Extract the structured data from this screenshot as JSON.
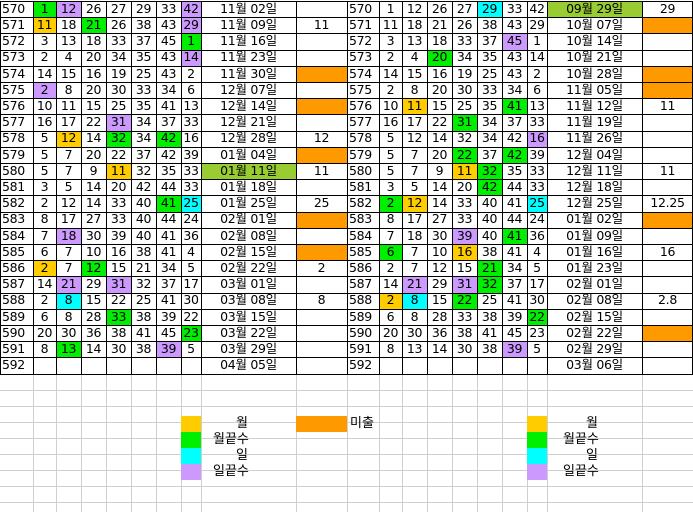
{
  "colors": {
    "yellow": "#ffcc00",
    "green": "#00ee00",
    "cyan": "#00ffff",
    "purple": "#cc99ff",
    "orange": "#ff9900",
    "olive": "#99cc33",
    "grid": "#000000",
    "light_grid": "#cfcfcf"
  },
  "left_table": {
    "rows": [
      {
        "num": "570",
        "n": [
          "1",
          "12",
          "26",
          "27",
          "29",
          "33",
          "42"
        ],
        "c": [
          "g",
          "p",
          "",
          "",
          "",
          "",
          "p"
        ],
        "date": "11월 02일",
        "dc": "",
        "r": "",
        "rc": ""
      },
      {
        "num": "571",
        "n": [
          "11",
          "18",
          "21",
          "26",
          "38",
          "43",
          "29"
        ],
        "c": [
          "y",
          "",
          "g",
          "",
          "",
          "",
          "p"
        ],
        "date": "11월 09일",
        "dc": "",
        "r": "11",
        "rc": ""
      },
      {
        "num": "572",
        "n": [
          "3",
          "13",
          "18",
          "33",
          "37",
          "45",
          "1"
        ],
        "c": [
          "",
          "",
          "",
          "",
          "",
          "",
          "g"
        ],
        "date": "11월 16일",
        "dc": "",
        "r": "",
        "rc": ""
      },
      {
        "num": "573",
        "n": [
          "2",
          "4",
          "20",
          "34",
          "35",
          "43",
          "14"
        ],
        "c": [
          "",
          "",
          "",
          "",
          "",
          "",
          "p"
        ],
        "date": "11월 23일",
        "dc": "",
        "r": "",
        "rc": ""
      },
      {
        "num": "574",
        "n": [
          "14",
          "15",
          "16",
          "19",
          "25",
          "43",
          "2"
        ],
        "c": [
          "",
          "",
          "",
          "",
          "",
          "",
          ""
        ],
        "date": "11월 30일",
        "dc": "",
        "r": "",
        "rc": "o"
      },
      {
        "num": "575",
        "n": [
          "2",
          "8",
          "20",
          "30",
          "33",
          "34",
          "6"
        ],
        "c": [
          "p",
          "",
          "",
          "",
          "",
          "",
          ""
        ],
        "date": "12월 07일",
        "dc": "",
        "r": "",
        "rc": ""
      },
      {
        "num": "576",
        "n": [
          "10",
          "11",
          "15",
          "25",
          "35",
          "41",
          "13"
        ],
        "c": [
          "",
          "",
          "",
          "",
          "",
          "",
          ""
        ],
        "date": "12월 14일",
        "dc": "",
        "r": "",
        "rc": "o"
      },
      {
        "num": "577",
        "n": [
          "16",
          "17",
          "22",
          "31",
          "34",
          "37",
          "33"
        ],
        "c": [
          "",
          "",
          "",
          "p",
          "",
          "",
          ""
        ],
        "date": "12월 21일",
        "dc": "",
        "r": "",
        "rc": ""
      },
      {
        "num": "578",
        "n": [
          "5",
          "12",
          "14",
          "32",
          "34",
          "42",
          "16"
        ],
        "c": [
          "",
          "y",
          "",
          "g",
          "",
          "g",
          ""
        ],
        "date": "12월 28일",
        "dc": "",
        "r": "12",
        "rc": ""
      },
      {
        "num": "579",
        "n": [
          "5",
          "7",
          "20",
          "22",
          "37",
          "42",
          "39"
        ],
        "c": [
          "",
          "",
          "",
          "",
          "",
          "",
          ""
        ],
        "date": "01월 04일",
        "dc": "",
        "r": "",
        "rc": "o"
      },
      {
        "num": "580",
        "n": [
          "5",
          "7",
          "9",
          "11",
          "32",
          "35",
          "33"
        ],
        "c": [
          "",
          "",
          "",
          "y",
          "",
          "",
          ""
        ],
        "date": "01월 11일",
        "dc": "ol",
        "r": "11",
        "rc": ""
      },
      {
        "num": "581",
        "n": [
          "3",
          "5",
          "14",
          "20",
          "42",
          "44",
          "33"
        ],
        "c": [
          "",
          "",
          "",
          "",
          "",
          "",
          ""
        ],
        "date": "01월 18일",
        "dc": "",
        "r": "",
        "rc": ""
      },
      {
        "num": "582",
        "n": [
          "2",
          "12",
          "14",
          "33",
          "40",
          "41",
          "25"
        ],
        "c": [
          "",
          "",
          "",
          "",
          "",
          "g",
          "c"
        ],
        "date": "01월 25일",
        "dc": "",
        "r": "25",
        "rc": ""
      },
      {
        "num": "583",
        "n": [
          "8",
          "17",
          "27",
          "33",
          "40",
          "44",
          "24"
        ],
        "c": [
          "",
          "",
          "",
          "",
          "",
          "",
          ""
        ],
        "date": "02월 01일",
        "dc": "",
        "r": "",
        "rc": "o"
      },
      {
        "num": "584",
        "n": [
          "7",
          "18",
          "30",
          "39",
          "40",
          "41",
          "36"
        ],
        "c": [
          "",
          "p",
          "",
          "",
          "",
          "",
          ""
        ],
        "date": "02월 08일",
        "dc": "",
        "r": "",
        "rc": ""
      },
      {
        "num": "585",
        "n": [
          "6",
          "7",
          "10",
          "16",
          "38",
          "41",
          "4"
        ],
        "c": [
          "",
          "",
          "",
          "",
          "",
          "",
          ""
        ],
        "date": "02월 15일",
        "dc": "",
        "r": "",
        "rc": "o"
      },
      {
        "num": "586",
        "n": [
          "2",
          "7",
          "12",
          "15",
          "21",
          "34",
          "5"
        ],
        "c": [
          "y",
          "",
          "g",
          "",
          "",
          "",
          ""
        ],
        "date": "02월 22일",
        "dc": "",
        "r": "2",
        "rc": ""
      },
      {
        "num": "587",
        "n": [
          "14",
          "21",
          "29",
          "31",
          "32",
          "37",
          "17"
        ],
        "c": [
          "",
          "p",
          "",
          "p",
          "",
          "",
          ""
        ],
        "date": "03월 01일",
        "dc": "",
        "r": "",
        "rc": ""
      },
      {
        "num": "588",
        "n": [
          "2",
          "8",
          "15",
          "22",
          "25",
          "41",
          "30"
        ],
        "c": [
          "",
          "c",
          "",
          "",
          "",
          "",
          ""
        ],
        "date": "03월 08일",
        "dc": "",
        "r": "8",
        "rc": ""
      },
      {
        "num": "589",
        "n": [
          "6",
          "8",
          "28",
          "33",
          "38",
          "39",
          "22"
        ],
        "c": [
          "",
          "",
          "",
          "g",
          "",
          "",
          ""
        ],
        "date": "03월 15일",
        "dc": "",
        "r": "",
        "rc": ""
      },
      {
        "num": "590",
        "n": [
          "20",
          "30",
          "36",
          "38",
          "41",
          "45",
          "23"
        ],
        "c": [
          "",
          "",
          "",
          "",
          "",
          "",
          "g"
        ],
        "date": "03월 22일",
        "dc": "",
        "r": "",
        "rc": ""
      },
      {
        "num": "591",
        "n": [
          "8",
          "13",
          "14",
          "30",
          "38",
          "39",
          "5"
        ],
        "c": [
          "",
          "g",
          "",
          "",
          "",
          "p",
          ""
        ],
        "date": "03월 29일",
        "dc": "",
        "r": "",
        "rc": ""
      },
      {
        "num": "592",
        "n": [
          "",
          "",
          "",
          "",
          "",
          "",
          ""
        ],
        "c": [
          "",
          "",
          "",
          "",
          "",
          "",
          ""
        ],
        "date": "04월 05일",
        "dc": "",
        "r": "",
        "rc": ""
      }
    ]
  },
  "right_table": {
    "rows": [
      {
        "num": "570",
        "n": [
          "1",
          "12",
          "26",
          "27",
          "29",
          "33",
          "42"
        ],
        "c": [
          "",
          "",
          "",
          "",
          "c",
          "",
          ""
        ],
        "date": "09월 29일",
        "dc": "ol",
        "r": "29",
        "rc": ""
      },
      {
        "num": "571",
        "n": [
          "11",
          "18",
          "21",
          "26",
          "38",
          "43",
          "29"
        ],
        "c": [
          "",
          "",
          "",
          "",
          "",
          "",
          ""
        ],
        "date": "10월 07일",
        "dc": "",
        "r": "",
        "rc": "o"
      },
      {
        "num": "572",
        "n": [
          "3",
          "13",
          "18",
          "33",
          "37",
          "45",
          "1"
        ],
        "c": [
          "",
          "",
          "",
          "",
          "",
          "p",
          ""
        ],
        "date": "10월 14일",
        "dc": "",
        "r": "",
        "rc": ""
      },
      {
        "num": "573",
        "n": [
          "2",
          "4",
          "20",
          "34",
          "35",
          "43",
          "14"
        ],
        "c": [
          "",
          "",
          "g",
          "",
          "",
          "",
          ""
        ],
        "date": "10월 21일",
        "dc": "",
        "r": "",
        "rc": ""
      },
      {
        "num": "574",
        "n": [
          "14",
          "15",
          "16",
          "19",
          "25",
          "43",
          "2"
        ],
        "c": [
          "",
          "",
          "",
          "",
          "",
          "",
          ""
        ],
        "date": "10월 28일",
        "dc": "",
        "r": "",
        "rc": "o"
      },
      {
        "num": "575",
        "n": [
          "2",
          "8",
          "20",
          "30",
          "33",
          "34",
          "6"
        ],
        "c": [
          "",
          "",
          "",
          "",
          "",
          "",
          ""
        ],
        "date": "11월 05일",
        "dc": "",
        "r": "",
        "rc": "o"
      },
      {
        "num": "576",
        "n": [
          "10",
          "11",
          "15",
          "25",
          "35",
          "41",
          "13"
        ],
        "c": [
          "",
          "y",
          "",
          "",
          "",
          "g",
          ""
        ],
        "date": "11월 12일",
        "dc": "",
        "r": "11",
        "rc": ""
      },
      {
        "num": "577",
        "n": [
          "16",
          "17",
          "22",
          "31",
          "34",
          "37",
          "33"
        ],
        "c": [
          "",
          "",
          "",
          "g",
          "",
          "",
          ""
        ],
        "date": "11월 19일",
        "dc": "",
        "r": "",
        "rc": ""
      },
      {
        "num": "578",
        "n": [
          "5",
          "12",
          "14",
          "32",
          "34",
          "42",
          "16"
        ],
        "c": [
          "",
          "",
          "",
          "",
          "",
          "",
          "p"
        ],
        "date": "11월 26일",
        "dc": "",
        "r": "",
        "rc": ""
      },
      {
        "num": "579",
        "n": [
          "5",
          "7",
          "20",
          "22",
          "37",
          "42",
          "39"
        ],
        "c": [
          "",
          "",
          "",
          "g",
          "",
          "g",
          ""
        ],
        "date": "12월 04일",
        "dc": "",
        "r": "",
        "rc": ""
      },
      {
        "num": "580",
        "n": [
          "5",
          "7",
          "9",
          "11",
          "32",
          "35",
          "33"
        ],
        "c": [
          "",
          "",
          "",
          "y",
          "g",
          "",
          ""
        ],
        "date": "12월 11일",
        "dc": "",
        "r": "11",
        "rc": ""
      },
      {
        "num": "581",
        "n": [
          "3",
          "5",
          "14",
          "20",
          "42",
          "44",
          "33"
        ],
        "c": [
          "",
          "",
          "",
          "",
          "g",
          "",
          ""
        ],
        "date": "12월 18일",
        "dc": "",
        "r": "",
        "rc": ""
      },
      {
        "num": "582",
        "n": [
          "2",
          "12",
          "14",
          "33",
          "40",
          "41",
          "25"
        ],
        "c": [
          "g",
          "y",
          "",
          "",
          "",
          "",
          "c"
        ],
        "date": "12월 25일",
        "dc": "",
        "r": "12.25",
        "rc": ""
      },
      {
        "num": "583",
        "n": [
          "8",
          "17",
          "27",
          "33",
          "40",
          "44",
          "24"
        ],
        "c": [
          "",
          "",
          "",
          "",
          "",
          "",
          ""
        ],
        "date": "01월 02일",
        "dc": "",
        "r": "",
        "rc": "o"
      },
      {
        "num": "584",
        "n": [
          "7",
          "18",
          "30",
          "39",
          "40",
          "41",
          "36"
        ],
        "c": [
          "",
          "",
          "",
          "p",
          "",
          "g",
          ""
        ],
        "date": "01월 09일",
        "dc": "",
        "r": "",
        "rc": ""
      },
      {
        "num": "585",
        "n": [
          "6",
          "7",
          "10",
          "16",
          "38",
          "41",
          "4"
        ],
        "c": [
          "g",
          "",
          "",
          "y",
          "",
          "",
          ""
        ],
        "date": "01월 16일",
        "dc": "",
        "r": "16",
        "rc": ""
      },
      {
        "num": "586",
        "n": [
          "2",
          "7",
          "12",
          "15",
          "21",
          "34",
          "5"
        ],
        "c": [
          "",
          "",
          "",
          "",
          "g",
          "",
          ""
        ],
        "date": "01월 23일",
        "dc": "",
        "r": "",
        "rc": ""
      },
      {
        "num": "587",
        "n": [
          "14",
          "21",
          "29",
          "31",
          "32",
          "37",
          "17"
        ],
        "c": [
          "",
          "p",
          "",
          "p",
          "g",
          "",
          ""
        ],
        "date": "02월 01일",
        "dc": "",
        "r": "",
        "rc": ""
      },
      {
        "num": "588",
        "n": [
          "2",
          "8",
          "15",
          "22",
          "25",
          "41",
          "30"
        ],
        "c": [
          "y",
          "c",
          "",
          "g",
          "",
          "",
          ""
        ],
        "date": "02월 08일",
        "dc": "",
        "r": "2.8",
        "rc": ""
      },
      {
        "num": "589",
        "n": [
          "6",
          "8",
          "28",
          "33",
          "38",
          "39",
          "22"
        ],
        "c": [
          "",
          "",
          "",
          "",
          "",
          "",
          "g"
        ],
        "date": "02월 15일",
        "dc": "",
        "r": "",
        "rc": ""
      },
      {
        "num": "590",
        "n": [
          "20",
          "30",
          "36",
          "38",
          "41",
          "45",
          "23"
        ],
        "c": [
          "",
          "",
          "",
          "",
          "",
          "",
          ""
        ],
        "date": "02월 22일",
        "dc": "",
        "r": "",
        "rc": "o"
      },
      {
        "num": "591",
        "n": [
          "8",
          "13",
          "14",
          "30",
          "38",
          "39",
          "5"
        ],
        "c": [
          "",
          "",
          "",
          "",
          "",
          "p",
          ""
        ],
        "date": "02월 29일",
        "dc": "",
        "r": "",
        "rc": ""
      },
      {
        "num": "592",
        "n": [
          "",
          "",
          "",
          "",
          "",
          "",
          ""
        ],
        "c": [
          "",
          "",
          "",
          "",
          "",
          "",
          ""
        ],
        "date": "03월 06일",
        "dc": "",
        "r": "",
        "rc": ""
      }
    ]
  },
  "legend": {
    "left": [
      {
        "label": "월",
        "color": "yellow"
      },
      {
        "label": "월끝수",
        "color": "green"
      },
      {
        "label": "일",
        "color": "cyan"
      },
      {
        "label": "일끝수",
        "color": "purple"
      }
    ],
    "middle": {
      "label": "미출",
      "color": "orange"
    },
    "right": [
      {
        "label": "월",
        "color": "yellow"
      },
      {
        "label": "월끝수",
        "color": "green"
      },
      {
        "label": "일",
        "color": "cyan"
      },
      {
        "label": "일끝수",
        "color": "purple"
      }
    ]
  }
}
